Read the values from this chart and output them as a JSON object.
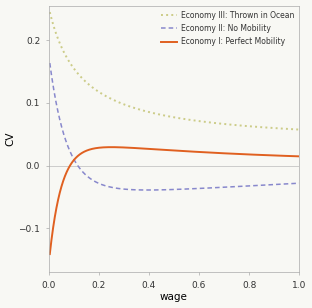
{
  "title": "",
  "xlabel": "wage",
  "ylabel": "CV",
  "xlim": [
    0.0,
    1.0
  ],
  "ylim": [
    -0.17,
    0.255
  ],
  "yticks": [
    -0.1,
    0.0,
    0.1,
    0.2
  ],
  "xticks": [
    0.0,
    0.2,
    0.4,
    0.6,
    0.8,
    1.0
  ],
  "legend_entries": [
    "Economy I: Perfect Mobility",
    "Economy II: No Mobility",
    "Economy III: Thrown in Ocean"
  ],
  "colors": {
    "economy1": "#E06020",
    "economy2": "#8888CC",
    "economy3": "#CCCC88"
  },
  "background_color": "#F8F8F4",
  "zero_line_color": "#BBBBBB",
  "spine_color": "#AAAAAA"
}
